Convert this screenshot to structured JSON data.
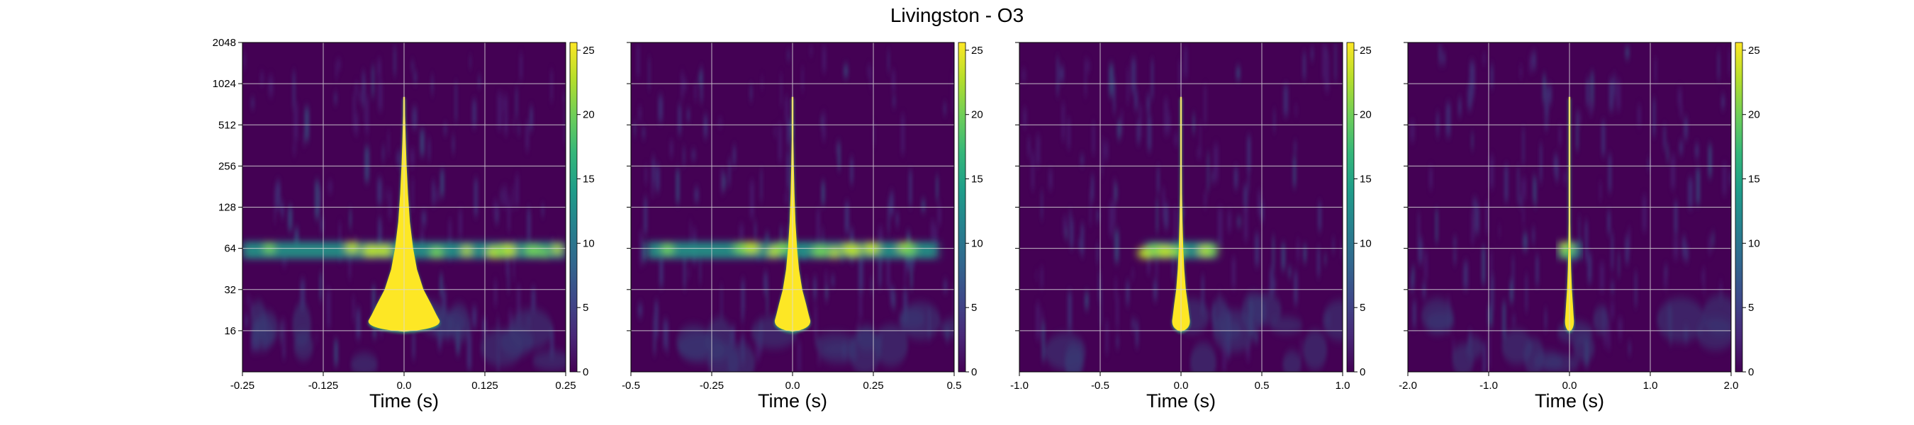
{
  "title": "Livingston - O3",
  "colors": {
    "colormap": [
      "#440154",
      "#482878",
      "#3e4989",
      "#31688e",
      "#26828e",
      "#1f9e89",
      "#35b779",
      "#6ece58",
      "#b5de2b",
      "#fde725"
    ],
    "gridline": "#d9d9d9",
    "spine": "#000000"
  },
  "chart_data": [
    {
      "type": "heatmap",
      "name": "panel-1",
      "xlabel": "Time (s)",
      "ylabel": "",
      "xlim": [
        -0.25,
        0.25
      ],
      "x_ticks": [
        "-0.25",
        "-0.125",
        "0.0",
        "0.125",
        "0.25"
      ],
      "y_scale": "log2",
      "ylim": [
        8,
        2048
      ],
      "y_ticks": [
        "2048",
        "1024",
        "512",
        "256",
        "128",
        "64",
        "32",
        "16"
      ],
      "colorbar_ticks": [
        "25",
        "20",
        "15",
        "10",
        "5",
        "0"
      ],
      "colorbar_range": [
        0,
        25.6
      ],
      "grid": true
    },
    {
      "type": "heatmap",
      "name": "panel-2",
      "xlabel": "Time (s)",
      "ylabel": "",
      "xlim": [
        -0.5,
        0.5
      ],
      "x_ticks": [
        "-0.5",
        "-0.25",
        "0.0",
        "0.25",
        "0.5"
      ],
      "y_scale": "log2",
      "ylim": [
        8,
        2048
      ],
      "y_ticks": [],
      "colorbar_ticks": [
        "25",
        "20",
        "15",
        "10",
        "5",
        "0"
      ],
      "colorbar_range": [
        0,
        25.6
      ],
      "grid": true
    },
    {
      "type": "heatmap",
      "name": "panel-3",
      "xlabel": "Time (s)",
      "ylabel": "",
      "xlim": [
        -1.0,
        1.0
      ],
      "x_ticks": [
        "-1.0",
        "-0.5",
        "0.0",
        "0.5",
        "1.0"
      ],
      "y_scale": "log2",
      "ylim": [
        8,
        2048
      ],
      "y_ticks": [],
      "colorbar_ticks": [
        "25",
        "20",
        "15",
        "10",
        "5",
        "0"
      ],
      "colorbar_range": [
        0,
        25.6
      ],
      "grid": true
    },
    {
      "type": "heatmap",
      "name": "panel-4",
      "xlabel": "Time (s)",
      "ylabel": "",
      "xlim": [
        -2.0,
        2.0
      ],
      "x_ticks": [
        "-2.0",
        "-1.0",
        "0.0",
        "1.0",
        "2.0"
      ],
      "y_scale": "log2",
      "ylim": [
        8,
        2048
      ],
      "y_ticks": [],
      "colorbar_ticks": [
        "25",
        "20",
        "15",
        "10",
        "5",
        "0"
      ],
      "colorbar_range": [
        0,
        25.6
      ],
      "grid": true
    }
  ]
}
